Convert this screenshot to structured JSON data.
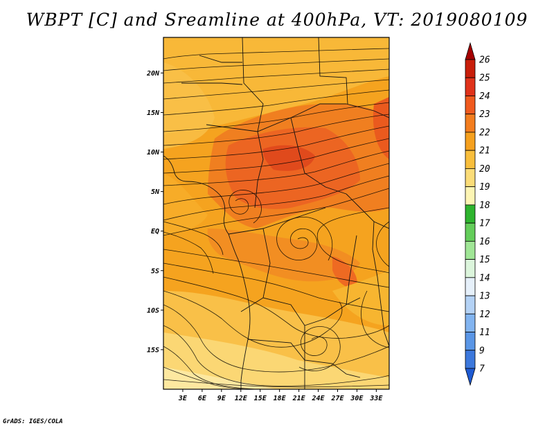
{
  "title": "WBPT [C] and Sreamline at 400hPa, VT: 2019080109",
  "footer": "GrADS: IGES/COLA",
  "chart_data": {
    "type": "heatmap",
    "variable": "WBPT [C]",
    "overlay": "streamlines",
    "level": "400hPa",
    "valid_time": "2019080109",
    "x_axis": {
      "range": [
        0,
        35
      ],
      "ticks": [
        3,
        6,
        9,
        12,
        15,
        18,
        21,
        24,
        27,
        30,
        33
      ],
      "tick_labels": [
        "3E",
        "6E",
        "9E",
        "12E",
        "15E",
        "18E",
        "21E",
        "24E",
        "27E",
        "30E",
        "33E"
      ]
    },
    "y_axis": {
      "range": [
        -20,
        24.5
      ],
      "ticks": [
        20,
        15,
        10,
        5,
        0,
        -5,
        -10,
        -15
      ],
      "tick_labels": [
        "20N",
        "15N",
        "10N",
        "5N",
        "EQ",
        "5S",
        "10S",
        "15S"
      ]
    },
    "colorbar": {
      "levels": [
        "26",
        "25",
        "24",
        "23",
        "22",
        "21",
        "20",
        "19",
        "18",
        "17",
        "16",
        "15",
        "14",
        "13",
        "12",
        "11",
        "9",
        "7"
      ],
      "colors": [
        "#a50000",
        "#c81e0a",
        "#e0321a",
        "#f05a1e",
        "#f37d1e",
        "#f5a01e",
        "#f8be3c",
        "#fbdc78",
        "#fdf5b4",
        "#2eb42e",
        "#64cd5a",
        "#a0e696",
        "#dcf5dc",
        "#e6f0fa",
        "#b4d2f5",
        "#82b4f0",
        "#5a96e6",
        "#3c78dc",
        "#1e5ad2"
      ]
    }
  }
}
